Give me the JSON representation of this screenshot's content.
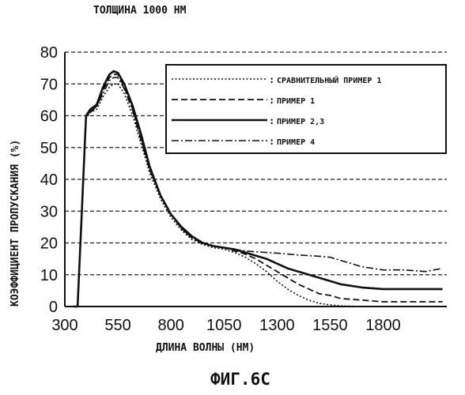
{
  "figure": {
    "top_note": "ТОЛЩИНА 1000 НМ",
    "caption": "ФИГ.6C"
  },
  "chart_data": {
    "type": "line",
    "title": "",
    "xlabel": "ДЛИНА ВОЛНЫ (НМ)",
    "ylabel": "КОЭФФИЦИЕНТ ПРОПУСКАНИЯ (%)",
    "xlim": [
      300,
      2100
    ],
    "ylim": [
      0,
      80
    ],
    "x_ticks": [
      300,
      550,
      800,
      1050,
      1300,
      1550,
      1800
    ],
    "y_ticks": [
      0,
      10,
      20,
      30,
      40,
      50,
      60,
      70,
      80
    ],
    "grid": "horizontal-dashed",
    "legend_position": "top-right",
    "series": [
      {
        "name": "СРАВНИТЕЛЬНЫЙ ПРИМЕР 1",
        "style": "dotted",
        "x": [
          340,
          360,
          380,
          400,
          420,
          450,
          480,
          510,
          530,
          550,
          580,
          620,
          660,
          700,
          750,
          800,
          850,
          900,
          950,
          1000,
          1050,
          1100,
          1150,
          1200,
          1250,
          1300,
          1350,
          1400,
          1450,
          1500,
          1550,
          1600,
          1700,
          1800,
          1900,
          2000,
          2080
        ],
        "y": [
          0,
          0,
          28,
          59,
          61,
          62,
          66,
          69,
          70,
          70,
          67,
          60,
          51,
          42,
          34,
          28,
          24,
          21,
          19.5,
          18.5,
          18,
          17,
          15.5,
          13.5,
          11,
          8,
          5.5,
          3.5,
          2,
          1,
          0.5,
          0.2,
          0,
          0,
          0,
          0,
          0
        ]
      },
      {
        "name": "ПРИМЕР 1",
        "style": "dashed",
        "x": [
          340,
          360,
          380,
          400,
          420,
          450,
          480,
          510,
          530,
          550,
          580,
          620,
          660,
          700,
          750,
          800,
          850,
          900,
          950,
          1000,
          1050,
          1100,
          1150,
          1200,
          1250,
          1300,
          1350,
          1400,
          1450,
          1500,
          1550,
          1600,
          1700,
          1800,
          1900,
          2000,
          2080
        ],
        "y": [
          0,
          0,
          29,
          60,
          61.5,
          63,
          68,
          72,
          73,
          73,
          69,
          62,
          53,
          43,
          35,
          29,
          24.5,
          21.5,
          20,
          19,
          18.5,
          17.5,
          16.5,
          15,
          13,
          11,
          9,
          7,
          5.5,
          4,
          3.5,
          2.5,
          2,
          1.5,
          1.5,
          1.5,
          1.5
        ]
      },
      {
        "name": "ПРИМЕР 2,3",
        "style": "solid",
        "x": [
          340,
          360,
          380,
          400,
          420,
          450,
          480,
          510,
          530,
          550,
          580,
          620,
          660,
          700,
          750,
          800,
          850,
          900,
          950,
          1000,
          1050,
          1100,
          1150,
          1200,
          1250,
          1300,
          1350,
          1400,
          1450,
          1500,
          1550,
          1600,
          1700,
          1800,
          1900,
          2000,
          2080
        ],
        "y": [
          0,
          0,
          30,
          60,
          62,
          63.5,
          69,
          73,
          74,
          73.5,
          70,
          63,
          54,
          44,
          35,
          29,
          25,
          22,
          20,
          19,
          18.5,
          18,
          17,
          16,
          15,
          13.5,
          12,
          11,
          10,
          9,
          8,
          7,
          6,
          5.5,
          5.5,
          5.5,
          5.5
        ]
      },
      {
        "name": "ПРИМЕР 4",
        "style": "dash-dot",
        "x": [
          340,
          360,
          380,
          400,
          420,
          450,
          480,
          510,
          530,
          550,
          580,
          620,
          660,
          700,
          750,
          800,
          850,
          900,
          950,
          1000,
          1050,
          1100,
          1150,
          1200,
          1250,
          1300,
          1350,
          1400,
          1450,
          1500,
          1550,
          1600,
          1700,
          1800,
          1900,
          2000,
          2080
        ],
        "y": [
          0,
          0,
          29,
          60,
          61,
          63,
          67,
          71,
          72,
          72,
          68.5,
          61.5,
          52,
          43,
          35,
          29,
          24.5,
          21.5,
          20,
          19,
          18.5,
          18,
          17.5,
          17.2,
          17,
          16.8,
          16.5,
          16.2,
          16,
          15.8,
          15.5,
          14.5,
          12.5,
          11.5,
          11.5,
          11,
          12
        ]
      }
    ]
  }
}
